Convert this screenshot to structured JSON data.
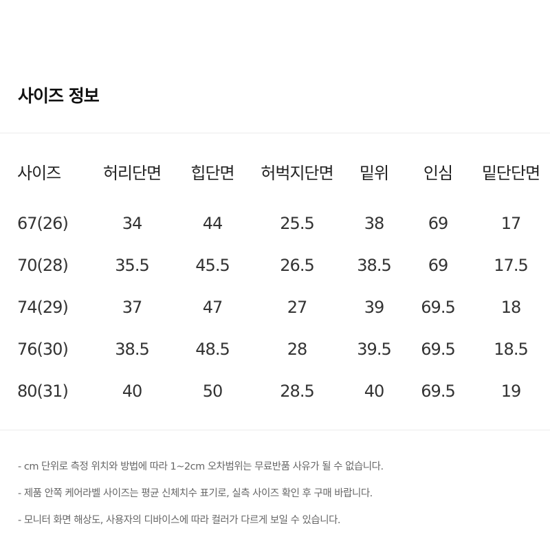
{
  "title": "사이즈 정보",
  "table": {
    "headers": [
      "사이즈",
      "허리단면",
      "힙단면",
      "허벅지단면",
      "밑위",
      "인심",
      "밑단단면"
    ],
    "rows": [
      [
        "67(26)",
        "34",
        "44",
        "25.5",
        "38",
        "69",
        "17"
      ],
      [
        "70(28)",
        "35.5",
        "45.5",
        "26.5",
        "38.5",
        "69",
        "17.5"
      ],
      [
        "74(29)",
        "37",
        "47",
        "27",
        "39",
        "69.5",
        "18"
      ],
      [
        "76(30)",
        "38.5",
        "48.5",
        "28",
        "39.5",
        "69.5",
        "18.5"
      ],
      [
        "80(31)",
        "40",
        "50",
        "28.5",
        "40",
        "69.5",
        "19"
      ]
    ]
  },
  "notes": [
    "- cm 단위로 측정 위치와 방법에 따라 1~2cm 오차범위는 무료반품 사유가 될 수 없습니다.",
    "- 제품 안쪽 케어라벨 사이즈는 평균 신체치수 표기로, 실측 사이즈 확인 후 구매 바랍니다.",
    "- 모니터 화면 해상도, 사용자의 디바이스에 따라 컬러가 다르게 보일 수 있습니다."
  ]
}
